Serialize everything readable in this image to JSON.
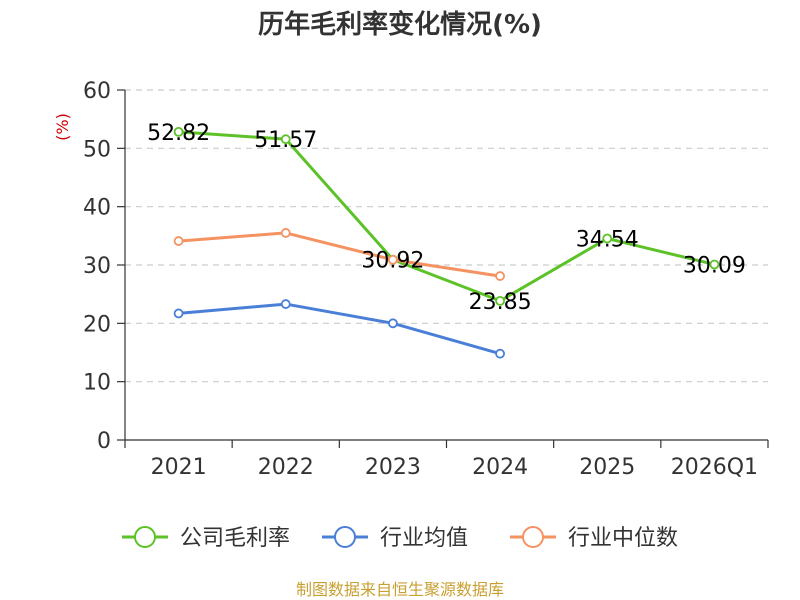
{
  "chart_data": {
    "type": "line",
    "title": "历年毛利率变化情况(%)",
    "ylabel": "(%)",
    "xlabel": "",
    "ylim": [
      0,
      60
    ],
    "yticks": [
      0,
      10,
      20,
      30,
      40,
      50,
      60
    ],
    "grid": true,
    "legend_position": "bottom",
    "categories": [
      "2021",
      "2022",
      "2023",
      "2024",
      "2025",
      "2026Q1"
    ],
    "series": [
      {
        "name": "公司毛利率",
        "color": "#5cc228",
        "values": [
          52.82,
          51.57,
          30.92,
          23.85,
          34.54,
          30.09
        ],
        "labels": [
          "52.82",
          "51.57",
          "30.92",
          "23.85",
          "34.54",
          "30.09"
        ]
      },
      {
        "name": "行业均值",
        "color": "#4a7fd8",
        "values": [
          21.7,
          23.3,
          20.0,
          14.8,
          null,
          null
        ]
      },
      {
        "name": "行业中位数",
        "color": "#f59262",
        "values": [
          34.1,
          35.5,
          30.9,
          28.1,
          null,
          null
        ]
      }
    ]
  },
  "footer": {
    "source": "制图数据来自恒生聚源数据库"
  }
}
